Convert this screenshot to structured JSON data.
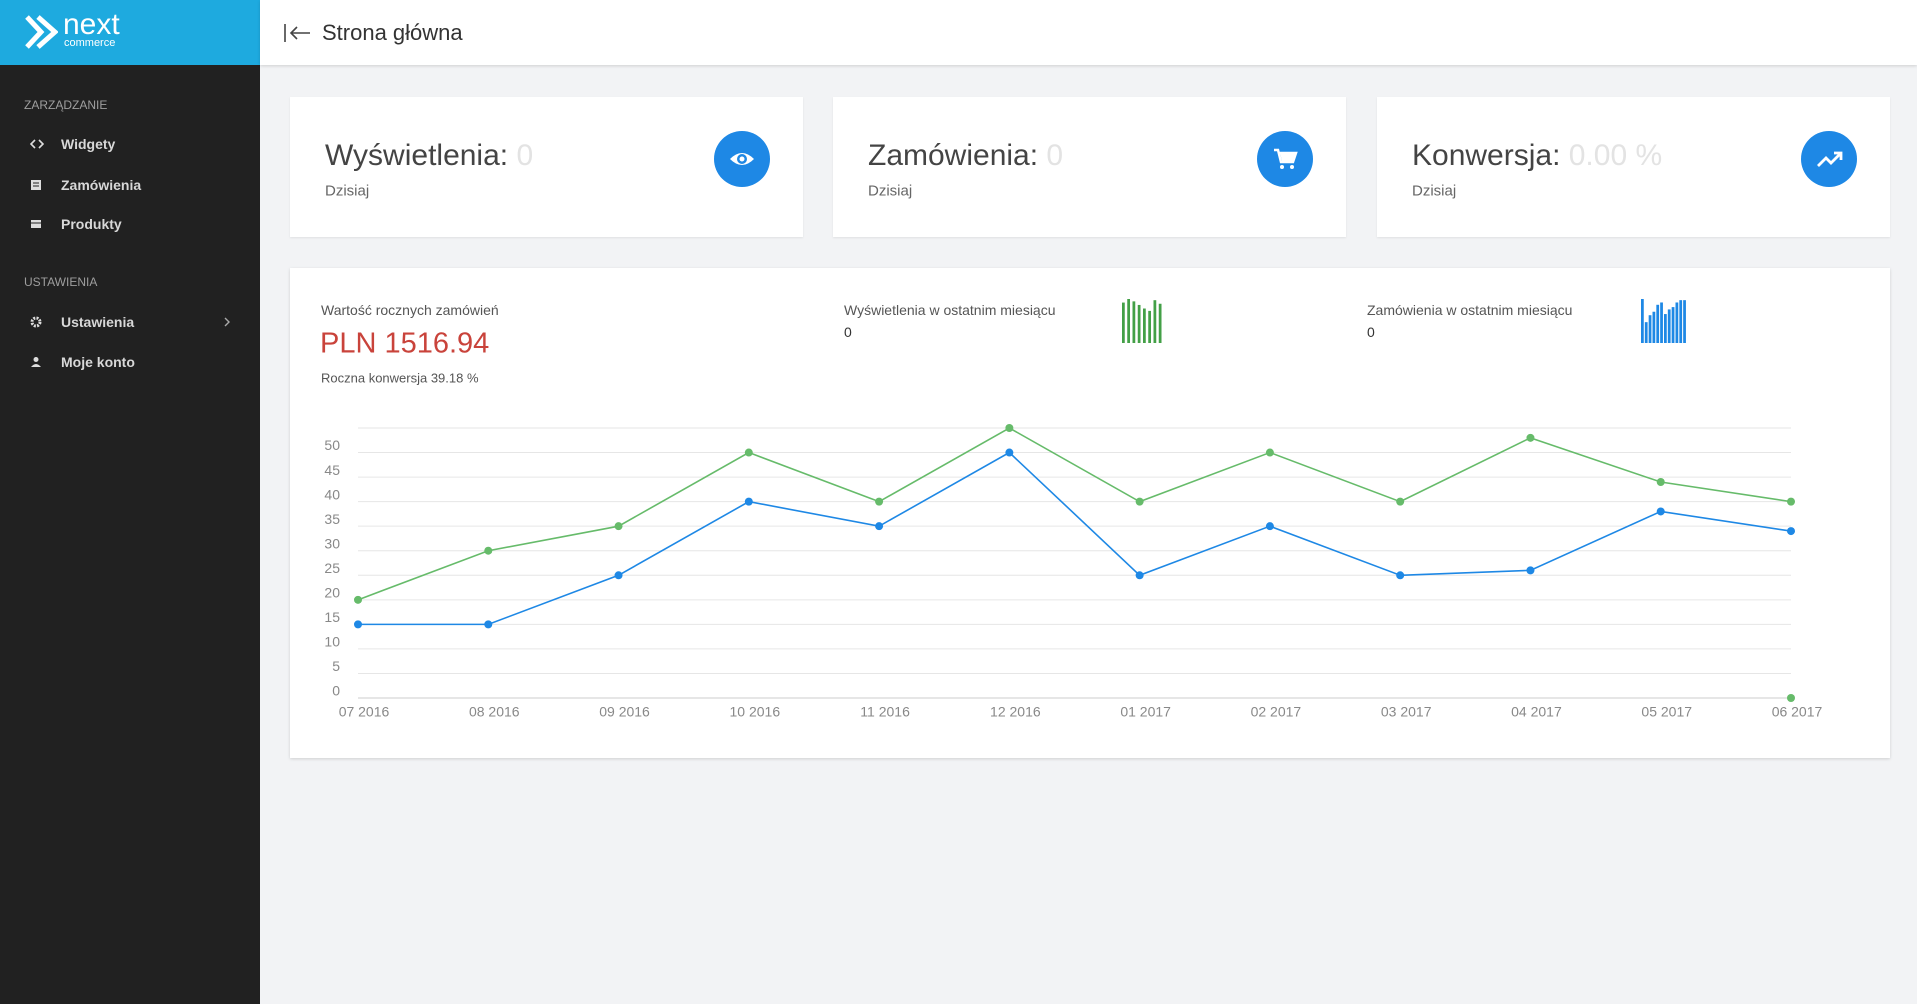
{
  "logo": {
    "name": "next",
    "sub": "commerce"
  },
  "header": {
    "title": "Strona główna"
  },
  "sidebar": {
    "sections": [
      {
        "title": "ZARZĄDZANIE",
        "items": [
          "Widgety",
          "Zamówienia",
          "Produkty"
        ]
      },
      {
        "title": "USTAWIENIA",
        "items": [
          "Ustawienia",
          "Moje konto"
        ]
      }
    ]
  },
  "cards": [
    {
      "label": "Wyświetlenia:",
      "value": "0",
      "sub": "Dzisiaj"
    },
    {
      "label": "Zamówienia:",
      "value": "0",
      "sub": "Dzisiaj"
    },
    {
      "label": "Konwersja:",
      "value": "0.00 %",
      "sub": "Dzisiaj"
    }
  ],
  "summary": {
    "annual_title": "Wartość rocznych zamówień",
    "annual_value": "PLN 1516.94",
    "annual_conversion": "Roczna konwersja 39.18 %",
    "views_title": "Wyświetlenia w ostatnim miesiącu",
    "views_value": "0",
    "orders_title": "Zamówienia w ostatnim miesiącu",
    "orders_value": "0"
  },
  "sparklines": [
    {
      "color": "#43a047",
      "values": [
        34,
        37,
        35,
        32,
        29,
        27,
        36,
        33
      ]
    },
    {
      "color": "#1e88e5",
      "values": [
        38,
        18,
        24,
        27,
        33,
        35,
        25,
        29,
        31,
        35,
        37,
        37
      ]
    }
  ],
  "chart_data": {
    "type": "line",
    "categories": [
      "07 2016",
      "08 2016",
      "09 2016",
      "10 2016",
      "11 2016",
      "12 2016",
      "01 2017",
      "02 2017",
      "03 2017",
      "04 2017",
      "05 2017",
      "06 2017"
    ],
    "series": [
      {
        "color": "#66bb6a",
        "values": [
          20,
          30,
          35,
          50,
          40,
          55,
          40,
          50,
          40,
          53,
          44,
          40
        ]
      },
      {
        "color": "#1e88e5",
        "values": [
          15,
          15,
          25,
          40,
          35,
          50,
          25,
          35,
          25,
          26,
          38,
          34
        ]
      },
      {
        "color": "#66bb6a",
        "values": [
          null,
          null,
          null,
          null,
          null,
          null,
          null,
          null,
          null,
          null,
          null,
          0
        ]
      }
    ],
    "ylim": [
      0,
      55
    ],
    "yticks": [
      0,
      5,
      10,
      15,
      20,
      25,
      30,
      35,
      40,
      45,
      50
    ],
    "grid": true
  }
}
